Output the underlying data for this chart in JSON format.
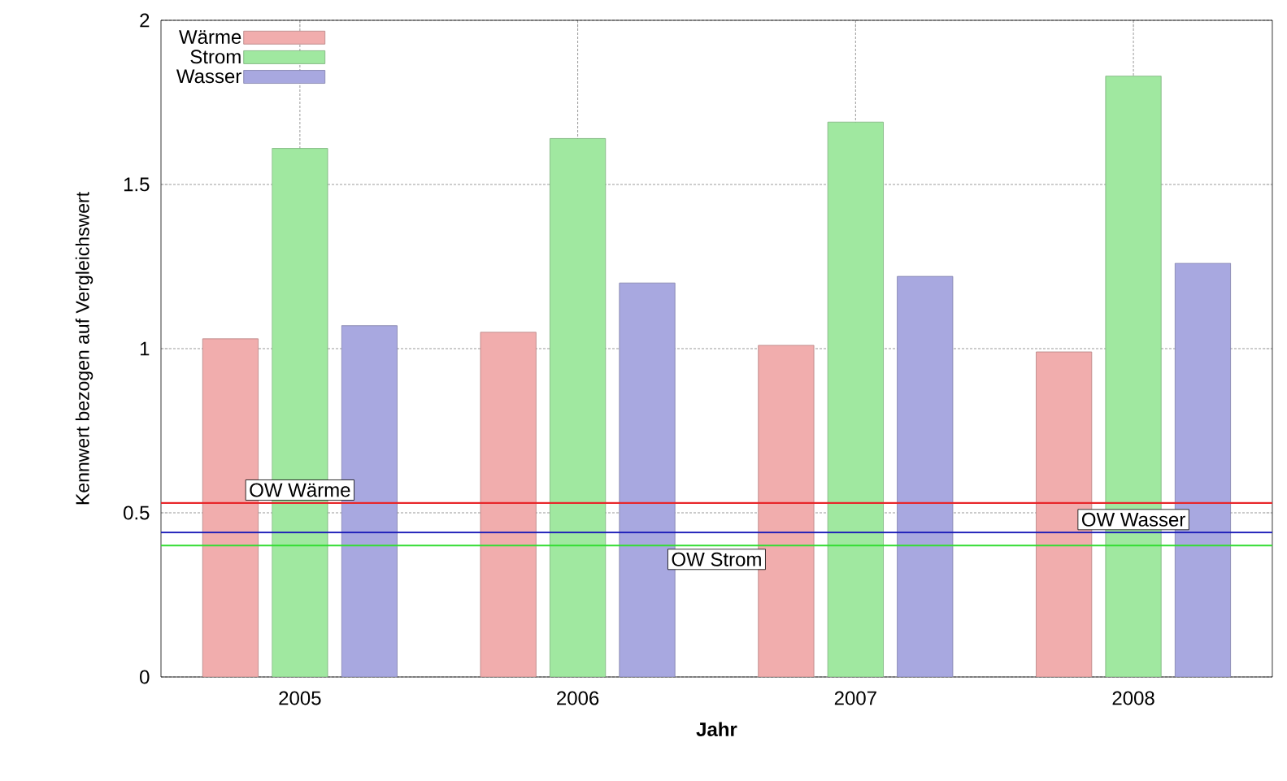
{
  "chart_data": {
    "type": "bar",
    "xlabel": "Jahr",
    "ylabel": "Kennwert bezogen auf Vergleichswert",
    "categories": [
      "2005",
      "2006",
      "2007",
      "2008"
    ],
    "series": [
      {
        "name": "Wärme",
        "color": "#f1adad",
        "values": [
          1.03,
          1.05,
          1.01,
          0.99
        ]
      },
      {
        "name": "Strom",
        "color": "#a0e8a0",
        "values": [
          1.61,
          1.64,
          1.69,
          1.83
        ]
      },
      {
        "name": "Wasser",
        "color": "#a8a8e0",
        "values": [
          1.07,
          1.2,
          1.22,
          1.26
        ]
      }
    ],
    "ref_lines": [
      {
        "axis": "y",
        "value": 0.53,
        "label": "OW Wärme",
        "color": "#e8262a"
      },
      {
        "axis": "y",
        "value": 0.4,
        "label": "OW Strom",
        "color": "#33dd33"
      },
      {
        "axis": "y",
        "value": 0.44,
        "label": "OW Wasser",
        "color": "#1a1ab8"
      }
    ],
    "ylim": [
      0,
      2
    ],
    "yticks": [
      0,
      0.5,
      1,
      1.5,
      2
    ],
    "grid": true,
    "legend": "top left"
  }
}
